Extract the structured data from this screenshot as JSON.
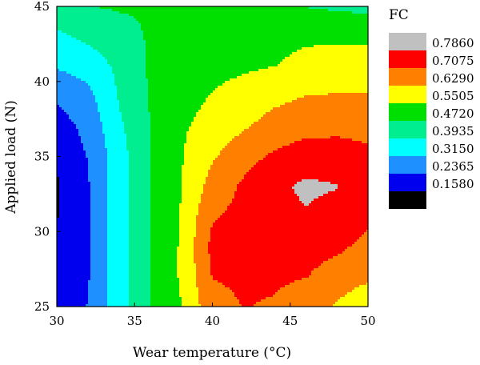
{
  "chart_data": {
    "type": "heatmap",
    "subtype": "filled-contour",
    "xlabel": "Wear temperature (°C)",
    "ylabel": "Applied load (N)",
    "xlim": [
      30,
      50
    ],
    "ylim": [
      25,
      45
    ],
    "x_ticks": [
      "30",
      "35",
      "40",
      "45",
      "50"
    ],
    "y_ticks": [
      "25",
      "30",
      "35",
      "40",
      "45"
    ],
    "grid": false,
    "legend": {
      "title": "FC",
      "placement": "right",
      "levels": [
        {
          "label": "0.7860",
          "color": "#c0c0c0"
        },
        {
          "label": "0.7075",
          "color": "#ff0000"
        },
        {
          "label": "0.6290",
          "color": "#ff8000"
        },
        {
          "label": "0.5505",
          "color": "#ffff00"
        },
        {
          "label": "0.4720",
          "color": "#00e000"
        },
        {
          "label": "0.3935",
          "color": "#00ee90"
        },
        {
          "label": "0.3150",
          "color": "#00ffff"
        },
        {
          "label": "0.2365",
          "color": "#1e90ff"
        },
        {
          "label": "0.1580",
          "color": "#0000ee"
        },
        {
          "label": "",
          "color": "#000000"
        }
      ]
    },
    "z_grid": {
      "x": [
        30,
        32,
        34,
        36,
        38,
        40,
        42,
        44,
        46,
        48,
        50
      ],
      "y": [
        25,
        27,
        29,
        31,
        33,
        35,
        37,
        39,
        41,
        43,
        45
      ],
      "z": [
        [
          0.17,
          0.24,
          0.36,
          0.47,
          0.55,
          0.68,
          0.71,
          0.7,
          0.66,
          0.62,
          0.55
        ],
        [
          0.16,
          0.23,
          0.36,
          0.47,
          0.56,
          0.71,
          0.72,
          0.72,
          0.71,
          0.68,
          0.65
        ],
        [
          0.16,
          0.23,
          0.36,
          0.47,
          0.56,
          0.73,
          0.74,
          0.74,
          0.73,
          0.72,
          0.69
        ],
        [
          0.155,
          0.23,
          0.36,
          0.47,
          0.555,
          0.7,
          0.73,
          0.75,
          0.78,
          0.75,
          0.72
        ],
        [
          0.15,
          0.23,
          0.36,
          0.47,
          0.55,
          0.66,
          0.72,
          0.77,
          0.8,
          0.79,
          0.74
        ],
        [
          0.165,
          0.24,
          0.36,
          0.47,
          0.545,
          0.62,
          0.68,
          0.72,
          0.75,
          0.74,
          0.72
        ],
        [
          0.2,
          0.26,
          0.38,
          0.47,
          0.54,
          0.58,
          0.62,
          0.66,
          0.68,
          0.69,
          0.69
        ],
        [
          0.25,
          0.29,
          0.4,
          0.48,
          0.52,
          0.555,
          0.58,
          0.61,
          0.63,
          0.635,
          0.635
        ],
        [
          0.32,
          0.35,
          0.41,
          0.48,
          0.51,
          0.53,
          0.54,
          0.55,
          0.57,
          0.58,
          0.58
        ],
        [
          0.38,
          0.41,
          0.44,
          0.48,
          0.49,
          0.5,
          0.52,
          0.53,
          0.54,
          0.54,
          0.54
        ],
        [
          0.44,
          0.47,
          0.48,
          0.48,
          0.48,
          0.485,
          0.495,
          0.505,
          0.47,
          0.46,
          0.45
        ]
      ]
    }
  }
}
